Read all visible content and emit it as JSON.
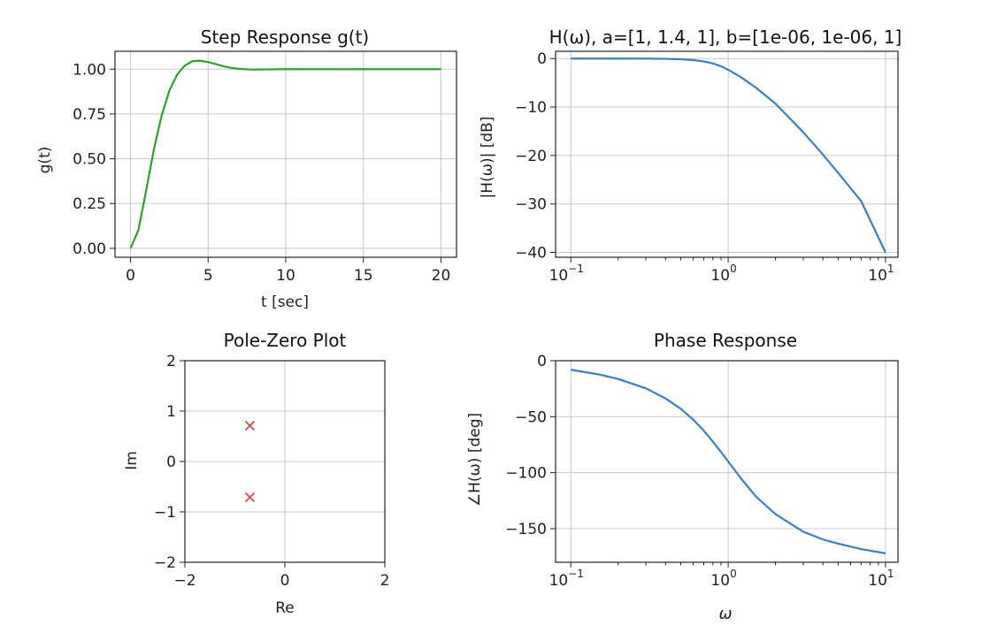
{
  "chart_data": [
    {
      "type": "line",
      "title": "Step Response g(t)",
      "xlabel": "t [sec]",
      "ylabel": "g(t)",
      "xlim": [
        -1,
        21
      ],
      "ylim": [
        -0.05,
        1.1
      ],
      "xticks": [
        0,
        5,
        10,
        15,
        20
      ],
      "xtick_labels": [
        "0",
        "5",
        "10",
        "15",
        "20"
      ],
      "yticks": [
        0,
        0.25,
        0.5,
        0.75,
        1.0
      ],
      "ytick_labels": [
        "0.00",
        "0.25",
        "0.50",
        "0.75",
        "1.00"
      ],
      "grid": true,
      "series": [
        {
          "color": "#2ca02c",
          "x": [
            0,
            0.5,
            1,
            1.5,
            2,
            2.5,
            3,
            3.5,
            4,
            4.5,
            5,
            5.5,
            6,
            6.5,
            7,
            7.5,
            8,
            9,
            10,
            11,
            12,
            14,
            16,
            18,
            20
          ],
          "y": [
            0,
            0.1,
            0.32,
            0.55,
            0.74,
            0.88,
            0.97,
            1.02,
            1.045,
            1.047,
            1.04,
            1.028,
            1.016,
            1.007,
            1.002,
            0.999,
            0.998,
            0.999,
            1.0,
            1.0,
            1.0,
            1.0,
            1.0,
            1.0,
            1.0
          ]
        }
      ]
    },
    {
      "type": "line",
      "title": "H(ω), a=[1, 1.4, 1], b=[1e-06, 1e-06, 1]",
      "xlabel": "",
      "ylabel": "|H(ω)| [dB]",
      "xscale": "log",
      "xlim": [
        0.08,
        12
      ],
      "ylim": [
        -41,
        1.5
      ],
      "xticks": [
        0.1,
        1,
        10
      ],
      "xtick_labels": [
        "10",
        "10",
        "10"
      ],
      "xtick_exponents": [
        "−1",
        "0",
        "1"
      ],
      "yticks": [
        0,
        -10,
        -20,
        -30,
        -40
      ],
      "ytick_labels": [
        "0",
        "−10",
        "−20",
        "−30",
        "−40"
      ],
      "grid": true,
      "series": [
        {
          "color": "#3b7fc4",
          "x": [
            0.1,
            0.15,
            0.2,
            0.3,
            0.4,
            0.5,
            0.6,
            0.7,
            0.8,
            0.9,
            1.0,
            1.2,
            1.5,
            2,
            3,
            4,
            5,
            7,
            10
          ],
          "y": [
            0,
            0,
            0,
            -0.02,
            -0.06,
            -0.15,
            -0.32,
            -0.6,
            -1.0,
            -1.6,
            -2.3,
            -3.8,
            -6.0,
            -9.3,
            -15.2,
            -19.8,
            -23.6,
            -29.4,
            -40
          ]
        }
      ]
    },
    {
      "type": "scatter",
      "title": "Pole-Zero Plot",
      "xlabel": "Re",
      "ylabel": "Im",
      "xlim": [
        -2,
        2
      ],
      "ylim": [
        -2,
        2
      ],
      "xticks": [
        -2,
        0,
        2
      ],
      "xtick_labels": [
        "−2",
        "0",
        "2"
      ],
      "yticks": [
        2,
        1,
        0,
        -1,
        -2
      ],
      "ytick_labels": [
        "2",
        "1",
        "0",
        "−1",
        "−2"
      ],
      "grid": true,
      "series": [
        {
          "marker": "x",
          "color": "#e0474c",
          "x": [
            -0.7,
            -0.7
          ],
          "y": [
            0.71,
            -0.71
          ]
        }
      ]
    },
    {
      "type": "line",
      "title": "Phase Response",
      "xlabel": "ω",
      "ylabel": "∠H(ω) [deg]",
      "xscale": "log",
      "xlim": [
        0.08,
        12
      ],
      "ylim": [
        -180,
        0
      ],
      "xticks": [
        0.1,
        1,
        10
      ],
      "xtick_labels": [
        "10",
        "10",
        "10"
      ],
      "xtick_exponents": [
        "−1",
        "0",
        "1"
      ],
      "yticks": [
        0,
        -50,
        -100,
        -150
      ],
      "ytick_labels": [
        "0",
        "−50",
        "−100",
        "−150"
      ],
      "grid": true,
      "series": [
        {
          "color": "#3b7fc4",
          "x": [
            0.1,
            0.15,
            0.2,
            0.3,
            0.4,
            0.5,
            0.6,
            0.7,
            0.8,
            0.9,
            1.0,
            1.2,
            1.5,
            2,
            3,
            4,
            5,
            7,
            10
          ],
          "y": [
            -8.1,
            -12.2,
            -16.3,
            -24.7,
            -33.7,
            -43.0,
            -52.7,
            -62.5,
            -72.3,
            -81.5,
            -90,
            -104.7,
            -121.2,
            -137.0,
            -152.7,
            -159.6,
            -163.4,
            -168.2,
            -172.0
          ]
        }
      ]
    }
  ]
}
